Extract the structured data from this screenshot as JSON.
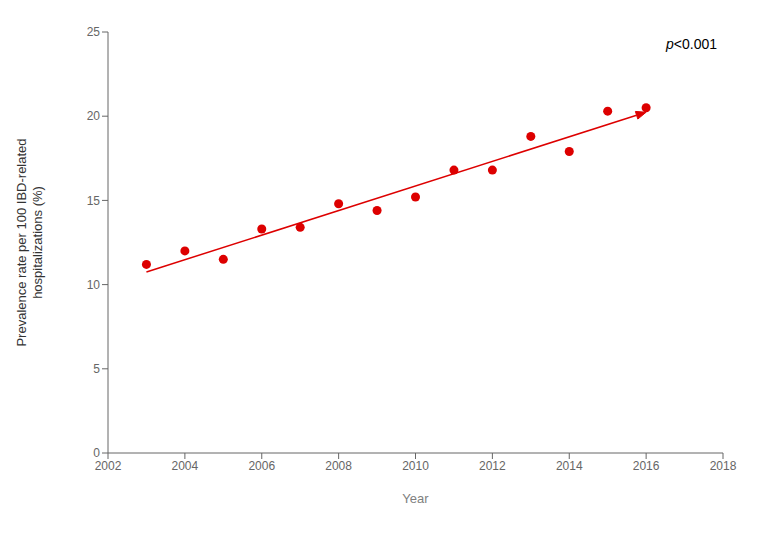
{
  "chart_data": {
    "type": "scatter",
    "x": [
      2003,
      2004,
      2005,
      2006,
      2007,
      2008,
      2009,
      2010,
      2011,
      2012,
      2013,
      2014,
      2015,
      2016
    ],
    "values": [
      11.2,
      12.0,
      11.5,
      13.3,
      13.4,
      14.8,
      14.4,
      15.2,
      16.8,
      16.8,
      18.8,
      17.9,
      20.3,
      20.5
    ],
    "color": "#dd0000",
    "trend": {
      "x": [
        2003,
        2016
      ],
      "values": [
        10.7486,
        20.2371
      ]
    },
    "annotation": {
      "italic": "p",
      "text": "<0.001"
    },
    "xlabel": "Year",
    "ylabel": "Prevalence rate per 100 IBD-related\nhospitalizations (%)",
    "xlim": [
      2002,
      2018
    ],
    "ylim": [
      0,
      25
    ],
    "xticks": [
      2002,
      2004,
      2006,
      2008,
      2010,
      2012,
      2014,
      2016,
      2018
    ],
    "yticks": [
      0,
      5,
      10,
      15,
      20,
      25
    ],
    "grid": false
  }
}
